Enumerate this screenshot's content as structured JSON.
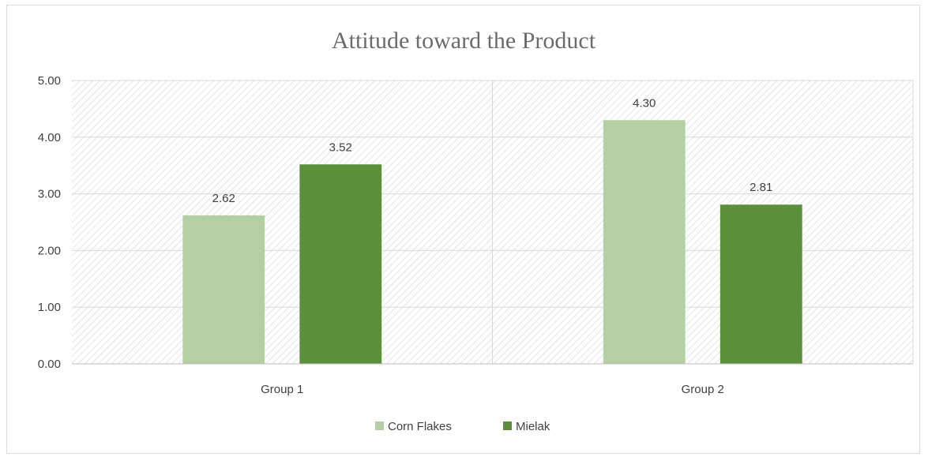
{
  "chart_data": {
    "type": "bar",
    "title": "Attitude toward the Product",
    "xlabel": "",
    "ylabel": "",
    "categories": [
      "Group 1",
      "Group 2"
    ],
    "series": [
      {
        "name": "Corn Flakes",
        "values": [
          2.62,
          4.3
        ],
        "color": "#b3cfa3"
      },
      {
        "name": "Mielak",
        "values": [
          3.52,
          2.81
        ],
        "color": "#5b8f3a"
      }
    ],
    "data_labels": [
      [
        "2.62",
        "4.30"
      ],
      [
        "3.52",
        "2.81"
      ]
    ],
    "ylim": [
      0,
      5
    ],
    "yticks": [
      "0.00",
      "1.00",
      "2.00",
      "3.00",
      "4.00",
      "5.00"
    ],
    "grid": true,
    "plot_background": "diagonal-hatch",
    "legend_position": "bottom"
  }
}
